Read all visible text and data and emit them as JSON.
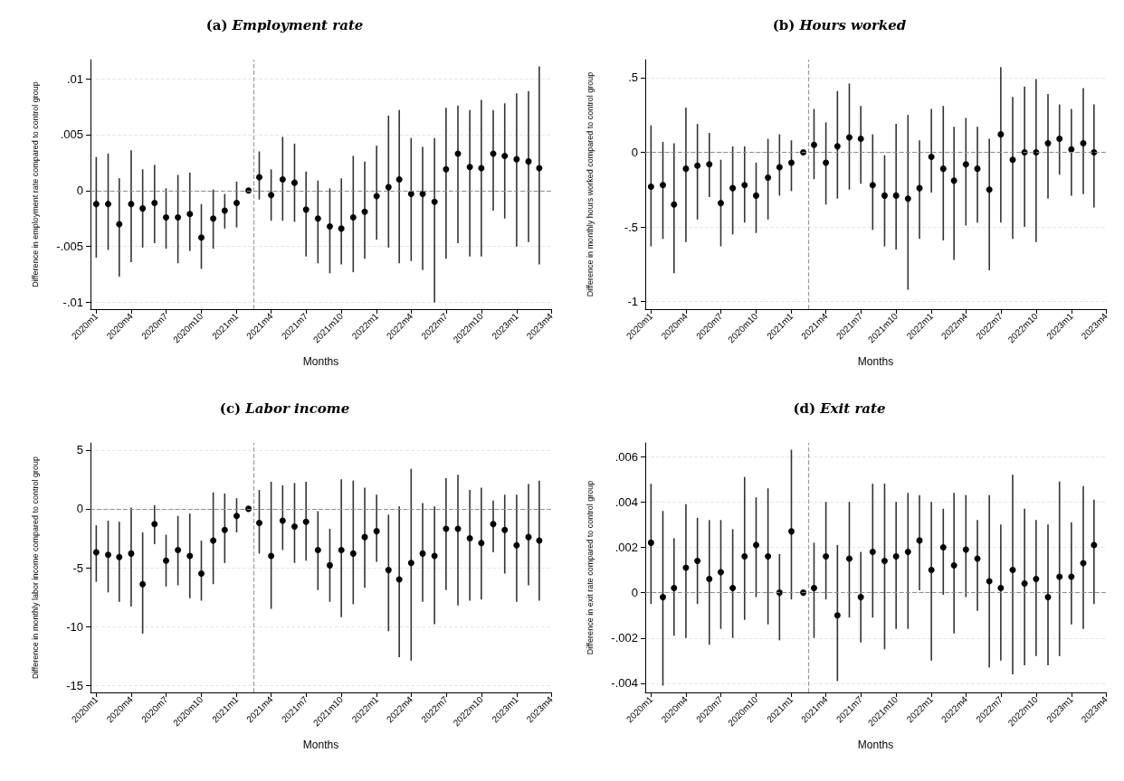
{
  "chart_data": [
    {
      "type": "scatter",
      "title": "(a) Employment rate",
      "xlabel": "Months",
      "ylabel": "Difference in employment rate compared to control group",
      "marker": "circle",
      "grid": "y",
      "x": [
        "2020-01",
        "2020-02",
        "2020-03",
        "2020-04",
        "2020-05",
        "2020-06",
        "2020-07",
        "2020-08",
        "2020-09",
        "2020-10",
        "2020-11",
        "2020-12",
        "2021-01",
        "2021-02",
        "2021-03",
        "2021-04",
        "2021-05",
        "2021-06",
        "2021-07",
        "2021-08",
        "2021-09",
        "2021-10",
        "2021-11",
        "2021-12",
        "2022-01",
        "2022-02",
        "2022-03",
        "2022-04",
        "2022-05",
        "2022-06",
        "2022-07",
        "2022-08",
        "2022-09",
        "2022-10",
        "2022-11",
        "2022-12",
        "2023-01",
        "2023-02",
        "2023-03"
      ],
      "xlim": [
        "2019-12-17",
        "2023-04"
      ],
      "xticks": [
        {
          "value": "2020-01",
          "label": "2020m1"
        },
        {
          "value": "2020-04",
          "label": "2020m4"
        },
        {
          "value": "2020-07",
          "label": "2020m7"
        },
        {
          "value": "2020-10",
          "label": "2020m10"
        },
        {
          "value": "2021-01",
          "label": "2021m1"
        },
        {
          "value": "2021-04",
          "label": "2021m4"
        },
        {
          "value": "2021-07",
          "label": "2021m7"
        },
        {
          "value": "2021-10",
          "label": "2021m10"
        },
        {
          "value": "2022-01",
          "label": "2022m1"
        },
        {
          "value": "2022-04",
          "label": "2022m4"
        },
        {
          "value": "2022-07",
          "label": "2022m7"
        },
        {
          "value": "2022-10",
          "label": "2022m10"
        },
        {
          "value": "2023-01",
          "label": "2023m1"
        },
        {
          "value": "2023-04",
          "label": "2023m4"
        }
      ],
      "ylim": [
        -0.0106,
        0.0117
      ],
      "yticks": [
        {
          "value": -0.01,
          "label": "-.01"
        },
        {
          "value": -0.005,
          "label": "-.005"
        },
        0,
        {
          "value": 0.005,
          "label": ".005"
        },
        {
          "value": 0.01,
          "label": ".01"
        }
      ],
      "ref_lines": [
        {
          "axis": "y",
          "value": 0,
          "color": "#8c8c8c",
          "line_style": "dashed"
        },
        {
          "axis": "x",
          "value": "2021-02-15",
          "color": "#9a9a9a",
          "line_style": "dashed"
        }
      ],
      "series": [
        {
          "color": "#000000",
          "values": [
            -0.0012,
            -0.0012,
            -0.003,
            -0.0012,
            -0.0016,
            -0.0011,
            -0.0024,
            -0.0024,
            -0.0021,
            -0.0042,
            -0.0025,
            -0.0018,
            -0.0011,
            0,
            0.0012,
            -0.0004,
            0.001,
            0.0007,
            -0.0017,
            -0.0025,
            -0.0032,
            -0.0034,
            -0.0024,
            -0.0019,
            -0.0005,
            0.0003,
            0.001,
            -0.0003,
            -0.0003,
            -0.001,
            0.0019,
            0.0033,
            0.0021,
            0.002,
            0.0033,
            0.0031,
            0.0028,
            0.0026,
            0.002
          ],
          "errors": [
            [
              -0.006,
              0.003
            ],
            [
              -0.0053,
              0.0033
            ],
            [
              -0.0077,
              0.0011
            ],
            [
              -0.0064,
              0.0036
            ],
            [
              -0.0051,
              0.0019
            ],
            [
              -0.0047,
              0.0023
            ],
            [
              -0.0052,
              0.0002
            ],
            [
              -0.0065,
              0.0014
            ],
            [
              -0.0054,
              0.0016
            ],
            [
              -0.007,
              -0.0012
            ],
            [
              -0.0052,
              0.0001
            ],
            [
              -0.0034,
              -0.0003
            ],
            [
              -0.0033,
              0.0008
            ],
            null,
            [
              -0.0008,
              0.0035
            ],
            [
              -0.0027,
              0.0019
            ],
            [
              -0.0027,
              0.0048
            ],
            [
              -0.0028,
              0.0042
            ],
            [
              -0.0059,
              0.0017
            ],
            [
              -0.0065,
              0.0009
            ],
            [
              -0.0074,
              0.0002
            ],
            [
              -0.0066,
              0.0011
            ],
            [
              -0.0073,
              0.0031
            ],
            [
              -0.0061,
              0.0026
            ],
            [
              -0.0044,
              0.004
            ],
            [
              -0.0051,
              0.0067
            ],
            [
              -0.0065,
              0.0072
            ],
            [
              -0.0063,
              0.0047
            ],
            [
              -0.0071,
              0.0039
            ],
            [
              -0.01,
              0.0047
            ],
            [
              -0.0061,
              0.0074
            ],
            [
              -0.0047,
              0.0076
            ],
            [
              -0.0059,
              0.0072
            ],
            [
              -0.0059,
              0.0081
            ],
            [
              -0.0018,
              0.0072
            ],
            [
              -0.0025,
              0.0078
            ],
            [
              -0.005,
              0.0087
            ],
            [
              -0.0046,
              0.0089
            ],
            [
              -0.0066,
              0.0111
            ]
          ]
        }
      ]
    },
    {
      "type": "scatter",
      "title": "(b) Hours worked",
      "xlabel": "Months",
      "ylabel": "Difference in monthly hours worked compared to control group",
      "marker": "circle",
      "grid": "y",
      "x": [
        "2020-01",
        "2020-02",
        "2020-03",
        "2020-04",
        "2020-05",
        "2020-06",
        "2020-07",
        "2020-08",
        "2020-09",
        "2020-10",
        "2020-11",
        "2020-12",
        "2021-01",
        "2021-02",
        "2021-03",
        "2021-04",
        "2021-05",
        "2021-06",
        "2021-07",
        "2021-08",
        "2021-09",
        "2021-10",
        "2021-11",
        "2021-12",
        "2022-01",
        "2022-02",
        "2022-03",
        "2022-04",
        "2022-05",
        "2022-06",
        "2022-07",
        "2022-08",
        "2022-09",
        "2022-10",
        "2022-11",
        "2022-12",
        "2023-01",
        "2023-02",
        "2023-03"
      ],
      "xlim": [
        "2019-12-17",
        "2023-04"
      ],
      "xticks": [
        {
          "value": "2020-01",
          "label": "2020m1"
        },
        {
          "value": "2020-04",
          "label": "2020m4"
        },
        {
          "value": "2020-07",
          "label": "2020m7"
        },
        {
          "value": "2020-10",
          "label": "2020m10"
        },
        {
          "value": "2021-01",
          "label": "2021m1"
        },
        {
          "value": "2021-04",
          "label": "2021m4"
        },
        {
          "value": "2021-07",
          "label": "2021m7"
        },
        {
          "value": "2021-10",
          "label": "2021m10"
        },
        {
          "value": "2022-01",
          "label": "2022m1"
        },
        {
          "value": "2022-04",
          "label": "2022m4"
        },
        {
          "value": "2022-07",
          "label": "2022m7"
        },
        {
          "value": "2022-10",
          "label": "2022m10"
        },
        {
          "value": "2023-01",
          "label": "2023m1"
        },
        {
          "value": "2023-04",
          "label": "2023m4"
        }
      ],
      "ylim": [
        -1.05,
        0.62
      ],
      "yticks": [
        -1,
        {
          "value": -0.5,
          "label": "-.5"
        },
        0,
        {
          "value": 0.5,
          "label": ".5"
        }
      ],
      "ref_lines": [
        {
          "axis": "y",
          "value": 0,
          "color": "#8c8c8c",
          "line_style": "dashed"
        },
        {
          "axis": "x",
          "value": "2021-02-15",
          "color": "#9a9a9a",
          "line_style": "dashed"
        }
      ],
      "series": [
        {
          "color": "#000000",
          "values": [
            -0.23,
            -0.22,
            -0.35,
            -0.11,
            -0.09,
            -0.08,
            -0.34,
            -0.24,
            -0.22,
            -0.29,
            -0.17,
            -0.1,
            -0.07,
            0,
            0.05,
            -0.07,
            0.04,
            0.1,
            0.09,
            -0.22,
            -0.29,
            -0.29,
            -0.31,
            -0.24,
            -0.03,
            -0.11,
            -0.19,
            -0.08,
            -0.11,
            -0.25,
            0.12,
            -0.05,
            0,
            0,
            0.06,
            0.09,
            0.02,
            0.06,
            0
          ],
          "errors": [
            [
              -0.63,
              0.18
            ],
            [
              -0.58,
              0.07
            ],
            [
              -0.81,
              0.06
            ],
            [
              -0.6,
              0.3
            ],
            [
              -0.45,
              0.19
            ],
            [
              -0.3,
              0.13
            ],
            [
              -0.63,
              -0.05
            ],
            [
              -0.55,
              0.04
            ],
            [
              -0.47,
              0.04
            ],
            [
              -0.54,
              -0.07
            ],
            [
              -0.45,
              0.09
            ],
            [
              -0.29,
              0.12
            ],
            [
              -0.26,
              0.08
            ],
            null,
            [
              -0.18,
              0.29
            ],
            [
              -0.35,
              0.2
            ],
            [
              -0.31,
              0.41
            ],
            [
              -0.25,
              0.46
            ],
            [
              -0.21,
              0.31
            ],
            [
              -0.52,
              0.12
            ],
            [
              -0.63,
              -0.02
            ],
            [
              -0.65,
              0.19
            ],
            [
              -0.92,
              0.25
            ],
            [
              -0.58,
              0.08
            ],
            [
              -0.27,
              0.29
            ],
            [
              -0.59,
              0.31
            ],
            [
              -0.72,
              0.17
            ],
            [
              -0.49,
              0.23
            ],
            [
              -0.47,
              0.17
            ],
            [
              -0.79,
              0.09
            ],
            [
              -0.47,
              0.57
            ],
            [
              -0.58,
              0.37
            ],
            [
              -0.5,
              0.44
            ],
            [
              -0.6,
              0.49
            ],
            [
              -0.31,
              0.39
            ],
            [
              -0.15,
              0.32
            ],
            [
              -0.29,
              0.29
            ],
            [
              -0.28,
              0.43
            ],
            [
              -0.37,
              0.32
            ]
          ]
        }
      ]
    },
    {
      "type": "scatter",
      "title": "(c) Labor income",
      "xlabel": "Months",
      "ylabel": "Difference in monthly labor income compared to control group",
      "marker": "circle",
      "grid": "y",
      "x": [
        "2020-01",
        "2020-02",
        "2020-03",
        "2020-04",
        "2020-05",
        "2020-06",
        "2020-07",
        "2020-08",
        "2020-09",
        "2020-10",
        "2020-11",
        "2020-12",
        "2021-01",
        "2021-02",
        "2021-03",
        "2021-04",
        "2021-05",
        "2021-06",
        "2021-07",
        "2021-08",
        "2021-09",
        "2021-10",
        "2021-11",
        "2021-12",
        "2022-01",
        "2022-02",
        "2022-03",
        "2022-04",
        "2022-05",
        "2022-06",
        "2022-07",
        "2022-08",
        "2022-09",
        "2022-10",
        "2022-11",
        "2022-12",
        "2023-01",
        "2023-02",
        "2023-03"
      ],
      "xlim": [
        "2019-12-17",
        "2023-04"
      ],
      "xticks": [
        {
          "value": "2020-01",
          "label": "2020m1"
        },
        {
          "value": "2020-04",
          "label": "2020m4"
        },
        {
          "value": "2020-07",
          "label": "2020m7"
        },
        {
          "value": "2020-10",
          "label": "2020m10"
        },
        {
          "value": "2021-01",
          "label": "2021m1"
        },
        {
          "value": "2021-04",
          "label": "2021m4"
        },
        {
          "value": "2021-07",
          "label": "2021m7"
        },
        {
          "value": "2021-10",
          "label": "2021m10"
        },
        {
          "value": "2022-01",
          "label": "2022m1"
        },
        {
          "value": "2022-04",
          "label": "2022m4"
        },
        {
          "value": "2022-07",
          "label": "2022m7"
        },
        {
          "value": "2022-10",
          "label": "2022m10"
        },
        {
          "value": "2023-01",
          "label": "2023m1"
        },
        {
          "value": "2023-04",
          "label": "2023m4"
        }
      ],
      "ylim": [
        -15.6,
        5.6
      ],
      "yticks": [
        -15,
        -10,
        -5,
        0,
        5
      ],
      "ref_lines": [
        {
          "axis": "y",
          "value": 0,
          "color": "#8c8c8c",
          "line_style": "dashed"
        },
        {
          "axis": "x",
          "value": "2021-02-15",
          "color": "#9a9a9a",
          "line_style": "dashed"
        }
      ],
      "series": [
        {
          "color": "#000000",
          "values": [
            -3.7,
            -3.9,
            -4.1,
            -3.8,
            -6.4,
            -1.3,
            -4.4,
            -3.5,
            -4,
            -5.5,
            -2.7,
            -1.8,
            -0.6,
            0,
            -1.2,
            -4,
            -1,
            -1.5,
            -1.1,
            -3.5,
            -4.8,
            -3.5,
            -3.8,
            -2.4,
            -1.9,
            -5.2,
            -6,
            -4.6,
            -3.8,
            -4,
            -1.7,
            -1.7,
            -2.5,
            -2.9,
            -1.3,
            -1.8,
            -3.1,
            -2.4,
            -2.7
          ],
          "errors": [
            [
              -6.2,
              -1.4
            ],
            [
              -7.1,
              -1
            ],
            [
              -7.9,
              -1.1
            ],
            [
              -8.3,
              0.1
            ],
            [
              -10.6,
              -2
            ],
            [
              -3,
              0.3
            ],
            [
              -6.6,
              -2.2
            ],
            [
              -6.5,
              -0.6
            ],
            [
              -7.6,
              -0.4
            ],
            [
              -7.8,
              -2.7
            ],
            [
              -6.4,
              1.4
            ],
            [
              -4.6,
              1.3
            ],
            [
              -2,
              0.9
            ],
            null,
            [
              -3.8,
              1.6
            ],
            [
              -8.5,
              2.3
            ],
            [
              -3.5,
              2
            ],
            [
              -4.6,
              2.2
            ],
            [
              -4.4,
              2.3
            ],
            [
              -6.9,
              -0.2
            ],
            [
              -7.9,
              -1.7
            ],
            [
              -9.2,
              2.5
            ],
            [
              -8.1,
              2.4
            ],
            [
              -6.7,
              1.8
            ],
            [
              -4.5,
              1.2
            ],
            [
              -10.4,
              -0.5
            ],
            [
              -12.6,
              0.2
            ],
            [
              -12.9,
              3.4
            ],
            [
              -7.9,
              0.5
            ],
            [
              -9.8,
              0.2
            ],
            [
              -6.9,
              2.6
            ],
            [
              -8.2,
              2.9
            ],
            [
              -7.8,
              1.6
            ],
            [
              -7.7,
              1.8
            ],
            [
              -3.7,
              0.7
            ],
            [
              -5.5,
              1.2
            ],
            [
              -7.9,
              1.2
            ],
            [
              -6.5,
              2.1
            ],
            [
              -7.8,
              2.4
            ]
          ]
        }
      ]
    },
    {
      "type": "scatter",
      "title": "(d) Exit rate",
      "xlabel": "Months",
      "ylabel": "Difference in exit rate compared to control group",
      "marker": "circle",
      "grid": "y",
      "x": [
        "2020-01",
        "2020-02",
        "2020-03",
        "2020-04",
        "2020-05",
        "2020-06",
        "2020-07",
        "2020-08",
        "2020-09",
        "2020-10",
        "2020-11",
        "2020-12",
        "2021-01",
        "2021-02",
        "2021-03",
        "2021-04",
        "2021-05",
        "2021-06",
        "2021-07",
        "2021-08",
        "2021-09",
        "2021-10",
        "2021-11",
        "2021-12",
        "2022-01",
        "2022-02",
        "2022-03",
        "2022-04",
        "2022-05",
        "2022-06",
        "2022-07",
        "2022-08",
        "2022-09",
        "2022-10",
        "2022-11",
        "2022-12",
        "2023-01",
        "2023-02",
        "2023-03"
      ],
      "xlim": [
        "2019-12-17",
        "2023-04"
      ],
      "xticks": [
        {
          "value": "2020-01",
          "label": "2020m1"
        },
        {
          "value": "2020-04",
          "label": "2020m4"
        },
        {
          "value": "2020-07",
          "label": "2020m7"
        },
        {
          "value": "2020-10",
          "label": "2020m10"
        },
        {
          "value": "2021-01",
          "label": "2021m1"
        },
        {
          "value": "2021-04",
          "label": "2021m4"
        },
        {
          "value": "2021-07",
          "label": "2021m7"
        },
        {
          "value": "2021-10",
          "label": "2021m10"
        },
        {
          "value": "2022-01",
          "label": "2022m1"
        },
        {
          "value": "2022-04",
          "label": "2022m4"
        },
        {
          "value": "2022-07",
          "label": "2022m7"
        },
        {
          "value": "2022-10",
          "label": "2022m10"
        },
        {
          "value": "2023-01",
          "label": "2023m1"
        },
        {
          "value": "2023-04",
          "label": "2023m4"
        }
      ],
      "ylim": [
        -0.0044,
        0.0066
      ],
      "yticks": [
        {
          "value": -0.004,
          "label": "-.004"
        },
        {
          "value": -0.002,
          "label": "-.002"
        },
        0,
        {
          "value": 0.002,
          "label": ".002"
        },
        {
          "value": 0.004,
          "label": ".004"
        },
        {
          "value": 0.006,
          "label": ".006"
        }
      ],
      "ref_lines": [
        {
          "axis": "y",
          "value": 0,
          "color": "#8c8c8c",
          "line_style": "dashed"
        },
        {
          "axis": "x",
          "value": "2021-02-15",
          "color": "#9a9a9a",
          "line_style": "dashed"
        }
      ],
      "series": [
        {
          "color": "#000000",
          "values": [
            0.0022,
            -0.0002,
            0.0002,
            0.0011,
            0.0014,
            0.0006,
            0.0009,
            0.0002,
            0.0016,
            0.0021,
            0.0016,
            0,
            0.0027,
            0,
            0.0002,
            0.0016,
            -0.001,
            0.0015,
            -0.0002,
            0.0018,
            0.0014,
            0.0016,
            0.0018,
            0.0023,
            0.001,
            0.002,
            0.0012,
            0.0019,
            0.0015,
            0.0005,
            0.0002,
            0.001,
            0.0004,
            0.0006,
            -0.0002,
            0.0007,
            0.0007,
            0.0013,
            0.0021
          ],
          "errors": [
            [
              -0.0005,
              0.0048
            ],
            [
              -0.0041,
              0.0036
            ],
            [
              -0.0019,
              0.0024
            ],
            [
              -0.002,
              0.0039
            ],
            [
              -0.0005,
              0.0033
            ],
            [
              -0.0023,
              0.0032
            ],
            [
              -0.0016,
              0.0032
            ],
            [
              -0.002,
              0.0028
            ],
            [
              -0.0012,
              0.0051
            ],
            [
              -0.0002,
              0.0042
            ],
            [
              -0.0014,
              0.0046
            ],
            [
              -0.0021,
              0.0017
            ],
            [
              -0.0003,
              0.0063
            ],
            null,
            [
              -0.002,
              0.0022
            ],
            [
              -0.0003,
              0.004
            ],
            [
              -0.0039,
              0.0021
            ],
            [
              -0.0011,
              0.004
            ],
            [
              -0.0022,
              0.0018
            ],
            [
              -0.0011,
              0.0048
            ],
            [
              -0.0025,
              0.0048
            ],
            [
              -0.0016,
              0.004
            ],
            [
              -0.0016,
              0.0044
            ],
            [
              0.0001,
              0.0043
            ],
            [
              -0.003,
              0.004
            ],
            [
              -0.0001,
              0.0037
            ],
            [
              -0.0018,
              0.0044
            ],
            [
              -0.0002,
              0.0043
            ],
            [
              -0.0008,
              0.0032
            ],
            [
              -0.0033,
              0.0043
            ],
            [
              -0.003,
              0.003
            ],
            [
              -0.0036,
              0.0052
            ],
            [
              -0.0032,
              0.0037
            ],
            [
              -0.0028,
              0.0032
            ],
            [
              -0.0032,
              0.003
            ],
            [
              -0.0028,
              0.0049
            ],
            [
              -0.0014,
              0.0031
            ],
            [
              -0.0016,
              0.0047
            ],
            [
              -0.0005,
              0.0041
            ]
          ]
        }
      ]
    }
  ]
}
